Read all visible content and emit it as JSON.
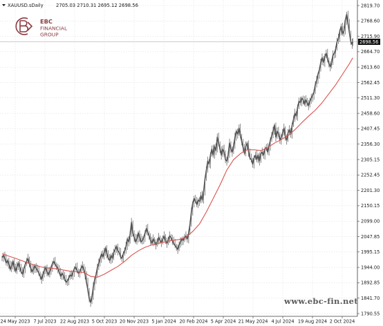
{
  "header": {
    "symbol_text": "XAUUSD.sDaily",
    "ohlc_text": "2705.03 2710.31 2695.12 2698.56"
  },
  "logo": {
    "line1": "EBC",
    "line2": "FINANCIAL",
    "line3": "GROUP",
    "color": "#8a3b3f"
  },
  "watermark": "www.ebc-fin.net",
  "colors": {
    "price_line": "#555555",
    "moving_average": "#d9534f",
    "grid": "#d8d8d8",
    "badge_bg": "#111111",
    "badge_fg": "#ffffff"
  },
  "chart_data": {
    "type": "candlestick",
    "title": "XAUUSD.sDaily",
    "y_ticks": [
      "2819.70",
      "2768.60",
      "2715.90",
      "2664.70",
      "2613.60",
      "2562.45",
      "2511.30",
      "2458.60",
      "2407.45",
      "2356.30",
      "2305.15",
      "2252.45",
      "2201.30",
      "2150.15",
      "2099.00",
      "2047.85",
      "1995.15",
      "1944.00",
      "1892.85",
      "1841.70",
      "1790.55"
    ],
    "x_ticks": [
      "24 May 2023",
      "7 Jul 2023",
      "22 Aug 2023",
      "5 Oct 2023",
      "20 Nov 2023",
      "5 Jan 2024",
      "20 Feb 2024",
      "5 Apr 2024",
      "21 May 2024",
      "4 Jul 2024",
      "19 Aug 2024",
      "2 Oct 2024"
    ],
    "ylim": [
      1790.55,
      2819.7
    ],
    "last_price_label": "2698.56",
    "last_price": 2698.56,
    "grid": true,
    "series": [
      {
        "kind": "price",
        "points": [
          [
            0,
            1978
          ],
          [
            2,
            1985
          ],
          [
            4,
            1975
          ],
          [
            6,
            1960
          ],
          [
            8,
            1968
          ],
          [
            10,
            1955
          ],
          [
            12,
            1938
          ],
          [
            14,
            1950
          ],
          [
            16,
            1965
          ],
          [
            18,
            1945
          ],
          [
            20,
            1932
          ],
          [
            22,
            1948
          ],
          [
            24,
            1960
          ],
          [
            26,
            1945
          ],
          [
            28,
            1930
          ],
          [
            30,
            1922
          ],
          [
            32,
            1940
          ],
          [
            34,
            1955
          ],
          [
            36,
            1965
          ],
          [
            38,
            1975
          ],
          [
            40,
            1958
          ],
          [
            42,
            1942
          ],
          [
            44,
            1930
          ],
          [
            46,
            1938
          ],
          [
            48,
            1950
          ],
          [
            50,
            1942
          ],
          [
            52,
            1935
          ],
          [
            54,
            1925
          ],
          [
            56,
            1915
          ],
          [
            58,
            1905
          ],
          [
            60,
            1920
          ],
          [
            62,
            1935
          ],
          [
            64,
            1945
          ],
          [
            66,
            1930
          ],
          [
            68,
            1920
          ],
          [
            70,
            1932
          ],
          [
            72,
            1945
          ],
          [
            74,
            1958
          ],
          [
            76,
            1965
          ],
          [
            78,
            1955
          ],
          [
            80,
            1948
          ],
          [
            82,
            1940
          ],
          [
            84,
            1928
          ],
          [
            86,
            1915
          ],
          [
            88,
            1925
          ],
          [
            90,
            1918
          ],
          [
            92,
            1905
          ],
          [
            94,
            1895
          ],
          [
            96,
            1900
          ],
          [
            98,
            1910
          ],
          [
            100,
            1920
          ],
          [
            102,
            1915
          ],
          [
            104,
            1928
          ],
          [
            106,
            1940
          ],
          [
            108,
            1946
          ],
          [
            110,
            1935
          ],
          [
            112,
            1925
          ],
          [
            114,
            1930
          ],
          [
            116,
            1942
          ],
          [
            118,
            1950
          ],
          [
            120,
            1938
          ],
          [
            122,
            1920
          ],
          [
            124,
            1895
          ],
          [
            126,
            1870
          ],
          [
            128,
            1840
          ],
          [
            130,
            1828
          ],
          [
            132,
            1845
          ],
          [
            134,
            1880
          ],
          [
            136,
            1905
          ],
          [
            138,
            1920
          ],
          [
            140,
            1945
          ],
          [
            142,
            1960
          ],
          [
            144,
            1975
          ],
          [
            146,
            1990
          ],
          [
            148,
            1980
          ],
          [
            150,
            1995
          ],
          [
            152,
            2010
          ],
          [
            154,
            1990
          ],
          [
            156,
            1975
          ],
          [
            158,
            1968
          ],
          [
            160,
            1985
          ],
          [
            162,
            1975
          ],
          [
            164,
            1995
          ],
          [
            166,
            2005
          ],
          [
            168,
            2015
          ],
          [
            170,
            2000
          ],
          [
            172,
            1995
          ],
          [
            174,
            1980
          ],
          [
            176,
            1975
          ],
          [
            178,
            1990
          ],
          [
            180,
            2000
          ],
          [
            182,
            2015
          ],
          [
            184,
            2040
          ],
          [
            186,
            2030
          ],
          [
            188,
            2055
          ],
          [
            190,
            2095
          ],
          [
            192,
            2060
          ],
          [
            194,
            2045
          ],
          [
            196,
            2030
          ],
          [
            198,
            2040
          ],
          [
            200,
            2060
          ],
          [
            202,
            2045
          ],
          [
            204,
            2030
          ],
          [
            206,
            2035
          ],
          [
            208,
            2045
          ],
          [
            210,
            2060
          ],
          [
            212,
            2075
          ],
          [
            214,
            2060
          ],
          [
            216,
            2050
          ],
          [
            218,
            2035
          ],
          [
            220,
            2025
          ],
          [
            222,
            2040
          ],
          [
            224,
            2030
          ],
          [
            226,
            2020
          ],
          [
            228,
            2030
          ],
          [
            230,
            2045
          ],
          [
            232,
            2035
          ],
          [
            234,
            2028
          ],
          [
            236,
            2040
          ],
          [
            238,
            2050
          ],
          [
            240,
            2035
          ],
          [
            242,
            2025
          ],
          [
            244,
            2035
          ],
          [
            246,
            2050
          ],
          [
            248,
            2045
          ],
          [
            250,
            2035
          ],
          [
            252,
            2025
          ],
          [
            254,
            2018
          ],
          [
            256,
            2012
          ],
          [
            258,
            2005
          ],
          [
            260,
            2020
          ],
          [
            262,
            2030
          ],
          [
            264,
            2040
          ],
          [
            266,
            2035
          ],
          [
            268,
            2045
          ],
          [
            270,
            2050
          ],
          [
            272,
            2040
          ],
          [
            274,
            2060
          ],
          [
            276,
            2090
          ],
          [
            278,
            2130
          ],
          [
            280,
            2160
          ],
          [
            282,
            2175
          ],
          [
            284,
            2165
          ],
          [
            286,
            2155
          ],
          [
            288,
            2170
          ],
          [
            290,
            2165
          ],
          [
            292,
            2185
          ],
          [
            294,
            2170
          ],
          [
            296,
            2200
          ],
          [
            298,
            2240
          ],
          [
            300,
            2270
          ],
          [
            302,
            2300
          ],
          [
            304,
            2290
          ],
          [
            306,
            2320
          ],
          [
            308,
            2340
          ],
          [
            310,
            2320
          ],
          [
            312,
            2350
          ],
          [
            314,
            2335
          ],
          [
            316,
            2380
          ],
          [
            318,
            2360
          ],
          [
            320,
            2340
          ],
          [
            322,
            2320
          ],
          [
            324,
            2340
          ],
          [
            326,
            2330
          ],
          [
            328,
            2305
          ],
          [
            330,
            2300
          ],
          [
            332,
            2320
          ],
          [
            334,
            2360
          ],
          [
            336,
            2340
          ],
          [
            338,
            2330
          ],
          [
            340,
            2350
          ],
          [
            342,
            2380
          ],
          [
            344,
            2400
          ],
          [
            346,
            2390
          ],
          [
            348,
            2410
          ],
          [
            350,
            2385
          ],
          [
            352,
            2365
          ],
          [
            354,
            2345
          ],
          [
            356,
            2325
          ],
          [
            358,
            2350
          ],
          [
            360,
            2360
          ],
          [
            362,
            2330
          ],
          [
            364,
            2310
          ],
          [
            366,
            2305
          ],
          [
            368,
            2290
          ],
          [
            370,
            2310
          ],
          [
            372,
            2320
          ],
          [
            374,
            2305
          ],
          [
            376,
            2320
          ],
          [
            378,
            2300
          ],
          [
            380,
            2325
          ],
          [
            382,
            2330
          ],
          [
            384,
            2320
          ],
          [
            386,
            2340
          ],
          [
            388,
            2345
          ],
          [
            390,
            2330
          ],
          [
            392,
            2350
          ],
          [
            394,
            2370
          ],
          [
            396,
            2385
          ],
          [
            398,
            2400
          ],
          [
            400,
            2420
          ],
          [
            402,
            2380
          ],
          [
            404,
            2400
          ],
          [
            406,
            2390
          ],
          [
            408,
            2370
          ],
          [
            410,
            2380
          ],
          [
            412,
            2395
          ],
          [
            414,
            2410
          ],
          [
            416,
            2380
          ],
          [
            418,
            2370
          ],
          [
            420,
            2395
          ],
          [
            422,
            2405
          ],
          [
            424,
            2390
          ],
          [
            426,
            2420
          ],
          [
            428,
            2440
          ],
          [
            430,
            2460
          ],
          [
            432,
            2450
          ],
          [
            434,
            2480
          ],
          [
            436,
            2500
          ],
          [
            438,
            2495
          ],
          [
            440,
            2510
          ],
          [
            442,
            2505
          ],
          [
            444,
            2490
          ],
          [
            446,
            2505
          ],
          [
            448,
            2495
          ],
          [
            450,
            2485
          ],
          [
            452,
            2500
          ],
          [
            454,
            2510
          ],
          [
            456,
            2520
          ],
          [
            458,
            2530
          ],
          [
            460,
            2555
          ],
          [
            462,
            2570
          ],
          [
            464,
            2590
          ],
          [
            466,
            2605
          ],
          [
            468,
            2630
          ],
          [
            470,
            2645
          ],
          [
            472,
            2630
          ],
          [
            474,
            2650
          ],
          [
            476,
            2660
          ],
          [
            478,
            2640
          ],
          [
            480,
            2625
          ],
          [
            482,
            2615
          ],
          [
            484,
            2630
          ],
          [
            486,
            2655
          ],
          [
            488,
            2660
          ],
          [
            490,
            2675
          ],
          [
            492,
            2700
          ],
          [
            494,
            2710
          ],
          [
            496,
            2735
          ],
          [
            498,
            2750
          ],
          [
            500,
            2725
          ],
          [
            502,
            2735
          ],
          [
            504,
            2770
          ],
          [
            506,
            2790
          ],
          [
            508,
            2760
          ],
          [
            510,
            2730
          ],
          [
            512,
            2700
          ],
          [
            514,
            2690
          ],
          [
            515,
            2698.56
          ]
        ]
      },
      {
        "kind": "moving_average",
        "points": [
          [
            0,
            1990
          ],
          [
            20,
            1975
          ],
          [
            40,
            1958
          ],
          [
            60,
            1945
          ],
          [
            80,
            1940
          ],
          [
            100,
            1932
          ],
          [
            120,
            1928
          ],
          [
            130,
            1915
          ],
          [
            140,
            1912
          ],
          [
            150,
            1922
          ],
          [
            160,
            1935
          ],
          [
            170,
            1948
          ],
          [
            180,
            1965
          ],
          [
            190,
            1985
          ],
          [
            200,
            2000
          ],
          [
            210,
            2012
          ],
          [
            220,
            2020
          ],
          [
            230,
            2026
          ],
          [
            240,
            2030
          ],
          [
            250,
            2035
          ],
          [
            260,
            2038
          ],
          [
            270,
            2045
          ],
          [
            280,
            2065
          ],
          [
            290,
            2090
          ],
          [
            300,
            2130
          ],
          [
            310,
            2175
          ],
          [
            320,
            2220
          ],
          [
            330,
            2270
          ],
          [
            340,
            2305
          ],
          [
            350,
            2325
          ],
          [
            360,
            2338
          ],
          [
            370,
            2338
          ],
          [
            380,
            2335
          ],
          [
            390,
            2345
          ],
          [
            400,
            2360
          ],
          [
            410,
            2372
          ],
          [
            420,
            2385
          ],
          [
            430,
            2405
          ],
          [
            440,
            2428
          ],
          [
            450,
            2450
          ],
          [
            460,
            2470
          ],
          [
            470,
            2495
          ],
          [
            480,
            2525
          ],
          [
            490,
            2555
          ],
          [
            500,
            2590
          ],
          [
            510,
            2625
          ],
          [
            515,
            2645
          ]
        ]
      }
    ]
  }
}
